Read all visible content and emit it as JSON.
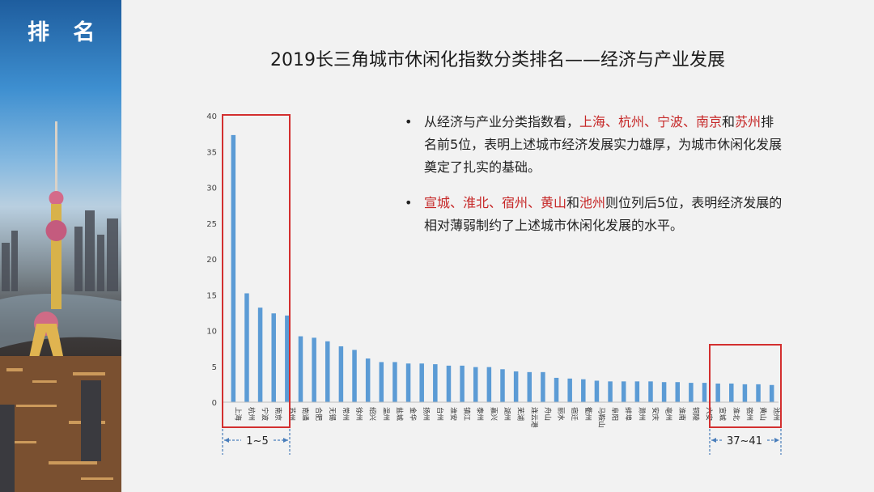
{
  "sidebar": {
    "title": "排 名"
  },
  "title": "2019长三角城市休闲化指数分类排名——经济与产业发展",
  "bullets": [
    {
      "parts": [
        {
          "text": "从经济与产业分类指数看，",
          "hl": false
        },
        {
          "text": "上海、杭州、宁波、南京",
          "hl": true
        },
        {
          "text": "和",
          "hl": false
        },
        {
          "text": "苏州",
          "hl": true
        },
        {
          "text": "排名前5位，表明上述城市经济发展实力雄厚，为城市休闲化发展奠定了扎实的基础。",
          "hl": false
        }
      ]
    },
    {
      "parts": [
        {
          "text": "宣城、淮北、宿州、黄山",
          "hl": true
        },
        {
          "text": "和",
          "hl": false
        },
        {
          "text": "池州",
          "hl": true
        },
        {
          "text": "则位列后5位，表明经济发展的相对薄弱制约了上述城市休闲化发展的水平。",
          "hl": false
        }
      ]
    }
  ],
  "bullet_symbol": "•",
  "top_range_label": "1~5",
  "bottom_range_label": "37~41",
  "colors": {
    "bar": "#5b9bd5",
    "highlight_box": "#d32f2f",
    "highlight_text": "#c62828",
    "range_line": "#4a7ebb"
  },
  "chart_data": {
    "type": "bar",
    "categories": [
      "上海",
      "杭州",
      "宁波",
      "南京",
      "苏州",
      "南通",
      "合肥",
      "无锡",
      "常州",
      "徐州",
      "绍兴",
      "温州",
      "盐城",
      "金华",
      "扬州",
      "台州",
      "淮安",
      "镇江",
      "泰州",
      "嘉兴",
      "湖州",
      "芜湖",
      "连云港",
      "舟山",
      "丽水",
      "宿迁",
      "衢州",
      "马鞍山",
      "阜阳",
      "蚌埠",
      "滁州",
      "安庆",
      "亳州",
      "淮南",
      "铜陵",
      "六安",
      "宣城",
      "淮北",
      "宿州",
      "黄山",
      "池州"
    ],
    "values": [
      37.3,
      15.2,
      13.2,
      12.4,
      12.1,
      9.2,
      9.0,
      8.5,
      7.8,
      7.3,
      6.1,
      5.6,
      5.6,
      5.4,
      5.4,
      5.3,
      5.1,
      5.1,
      4.9,
      4.9,
      4.6,
      4.3,
      4.2,
      4.2,
      3.4,
      3.3,
      3.2,
      3.0,
      2.9,
      2.9,
      2.9,
      2.9,
      2.8,
      2.8,
      2.7,
      2.7,
      2.6,
      2.6,
      2.5,
      2.5,
      2.4
    ],
    "ylim": [
      0,
      40
    ],
    "yticks": [
      0,
      5,
      10,
      15,
      20,
      25,
      30,
      35,
      40
    ],
    "grid": false,
    "legend": "none"
  }
}
